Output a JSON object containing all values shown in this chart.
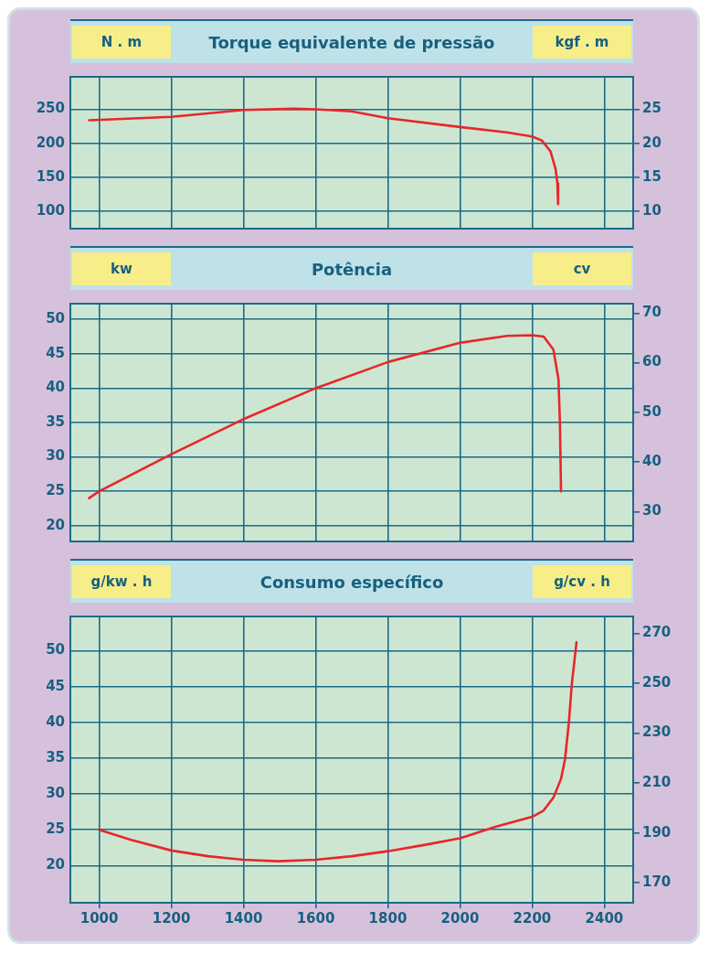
{
  "chart_data": [
    {
      "type": "line",
      "title": "Torque equivalente de pressão",
      "ylabel": "N . m",
      "y2label": "kgf . m",
      "xlim": [
        920,
        2480
      ],
      "xticks": [
        1000,
        1200,
        1400,
        1600,
        1800,
        2000,
        2200,
        2400
      ],
      "ylim": [
        74,
        298
      ],
      "yticks": [
        100,
        150,
        200,
        250
      ],
      "y2lim": [
        7.4,
        29.8
      ],
      "y2ticks": [
        10,
        15,
        20,
        25
      ],
      "grid": true,
      "legend": false,
      "marker": "none",
      "line_style": "solid",
      "tick_labels": "y",
      "series": [
        {
          "color": "#e8262a",
          "x": [
            972,
            1200,
            1400,
            1540,
            1600,
            1700,
            1800,
            2000,
            2130,
            2200,
            2227,
            2251,
            2265,
            2270,
            2272
          ],
          "values": [
            234,
            239,
            249,
            251,
            250,
            247,
            237,
            224,
            216,
            210,
            204,
            188,
            162,
            141,
            110
          ]
        }
      ]
    },
    {
      "type": "line",
      "title": "Potência",
      "ylabel": "kw",
      "y2label": "cv",
      "xlim": [
        920,
        2480
      ],
      "xticks": [
        1000,
        1200,
        1400,
        1600,
        1800,
        2000,
        2200,
        2400
      ],
      "ylim": [
        17.7,
        52.3
      ],
      "yticks": [
        20,
        25,
        30,
        35,
        40,
        45,
        50
      ],
      "y2lim": [
        24.0,
        71.9
      ],
      "y2ticks": [
        30,
        40,
        50,
        60,
        70
      ],
      "grid": true,
      "legend": false,
      "marker": "none",
      "line_style": "solid",
      "tick_labels": "y",
      "series": [
        {
          "color": "#e8262a",
          "x": [
            972,
            1000,
            1200,
            1400,
            1600,
            1800,
            2000,
            2130,
            2200,
            2232,
            2259,
            2273,
            2277,
            2280
          ],
          "values": [
            24.0,
            25.0,
            30.4,
            35.5,
            40.0,
            43.8,
            46.6,
            47.6,
            47.7,
            47.5,
            45.6,
            41.3,
            34.9,
            25.0
          ]
        }
      ]
    },
    {
      "type": "line",
      "title": "Consumo específico",
      "ylabel": "g/kw . h",
      "y2label": "g/cv . h",
      "xlim": [
        920,
        2480
      ],
      "xticks": [
        1000,
        1200,
        1400,
        1600,
        1800,
        2000,
        2200,
        2400
      ],
      "ylim": [
        14.8,
        54.8
      ],
      "yticks": [
        20,
        25,
        30,
        35,
        40,
        45,
        50
      ],
      "y2lim": [
        162,
        276.8
      ],
      "y2ticks": [
        170,
        190,
        210,
        230,
        250,
        270
      ],
      "grid": true,
      "legend": false,
      "marker": "none",
      "line_style": "solid",
      "series": [
        {
          "color": "#e8262a",
          "x": [
            1000,
            1088,
            1200,
            1302,
            1400,
            1496,
            1600,
            1700,
            1800,
            1904,
            2000,
            2098,
            2200,
            2232,
            2259,
            2280,
            2291,
            2302,
            2310,
            2323
          ],
          "values": [
            25.0,
            23.6,
            22.1,
            21.3,
            20.8,
            20.6,
            20.8,
            21.3,
            22.0,
            22.9,
            23.8,
            25.4,
            26.8,
            27.7,
            29.5,
            32.1,
            34.8,
            40.1,
            45.4,
            51.2
          ]
        }
      ]
    }
  ]
}
